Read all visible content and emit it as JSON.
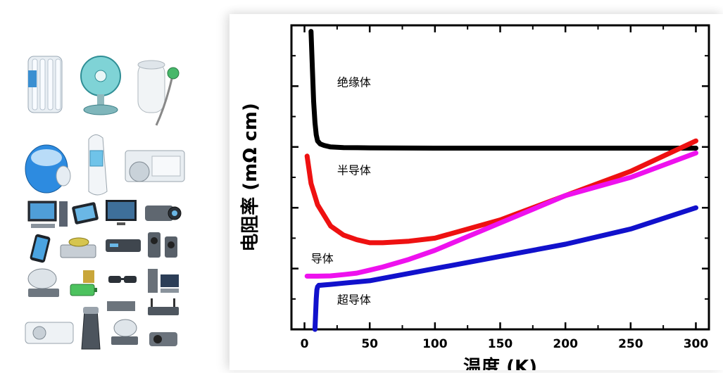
{
  "left_panel": {
    "icons": [
      "oil-heater-icon",
      "desk-fan-icon",
      "water-heater-icon",
      "humidifier-icon",
      "ear-thermometer-icon",
      "air-conditioner-outdoor-icon",
      "desktop-computer-icon",
      "tablet-icon",
      "flat-tv-icon",
      "camcorder-icon",
      "smartphone-icon",
      "dvd-player-icon",
      "set-top-box-icon",
      "speakers-icon",
      "satellite-dish-icon",
      "battery-icon",
      "3d-glasses-icon",
      "home-theater-icon",
      "split-air-conditioner-icon",
      "electric-shaver-icon",
      "satellite-receiver-icon",
      "router-icon",
      "projector-icon",
      "stereo-icon"
    ]
  },
  "chart_data": {
    "type": "line",
    "xlabel": "温度 (K)",
    "ylabel": "电阻率 (mΩ cm)",
    "xlim": [
      -10,
      310
    ],
    "xticks": [
      0,
      50,
      100,
      150,
      200,
      250,
      300
    ],
    "ylim": [
      0,
      10
    ],
    "grid": false,
    "legend": "none",
    "series": [
      {
        "name": "绝缘体",
        "color": "#000000",
        "x": [
          5,
          6,
          7,
          8,
          9,
          10,
          12,
          15,
          20,
          30,
          50,
          100,
          150,
          200,
          250,
          300
        ],
        "y": [
          9.8,
          8.6,
          7.5,
          6.8,
          6.4,
          6.2,
          6.1,
          6.05,
          6.0,
          5.98,
          5.97,
          5.96,
          5.96,
          5.96,
          5.96,
          5.96
        ]
      },
      {
        "name": "半导体",
        "color": "#ee1111",
        "x": [
          2,
          5,
          10,
          20,
          30,
          40,
          50,
          60,
          80,
          100,
          150,
          200,
          250,
          300
        ],
        "y": [
          5.7,
          4.8,
          4.1,
          3.4,
          3.1,
          2.95,
          2.85,
          2.85,
          2.9,
          3.0,
          3.6,
          4.4,
          5.2,
          6.2
        ]
      },
      {
        "name": "导体",
        "color": "#ee11ee",
        "x": [
          2,
          10,
          20,
          30,
          40,
          50,
          60,
          80,
          100,
          150,
          200,
          250,
          300
        ],
        "y": [
          1.75,
          1.75,
          1.76,
          1.8,
          1.85,
          1.95,
          2.05,
          2.3,
          2.6,
          3.5,
          4.4,
          5.0,
          5.8
        ]
      },
      {
        "name": "超导体",
        "color": "#1111cc",
        "x": [
          8,
          8.5,
          9,
          9.5,
          10,
          11,
          12,
          15,
          20,
          30,
          50,
          100,
          150,
          200,
          250,
          300
        ],
        "y": [
          0,
          0.5,
          1.0,
          1.3,
          1.4,
          1.45,
          1.45,
          1.46,
          1.48,
          1.52,
          1.6,
          2.0,
          2.4,
          2.8,
          3.3,
          4.0
        ]
      }
    ]
  }
}
